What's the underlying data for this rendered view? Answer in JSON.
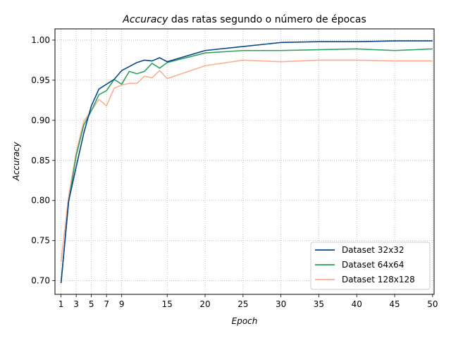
{
  "chart_data": {
    "type": "line",
    "title": "Accuracy das ratas segundo o número de épocas",
    "title_emphasis": "Accuracy",
    "title_rest": " das ratas segundo o número de épocas",
    "xlabel": "Epoch",
    "ylabel": "Accuracy",
    "xlim": [
      0.2,
      50.2
    ],
    "ylim": [
      0.683,
      1.014
    ],
    "x_ticks": [
      1,
      3,
      5,
      7,
      9,
      15,
      20,
      25,
      30,
      35,
      40,
      45,
      50
    ],
    "y_ticks": [
      0.7,
      0.75,
      0.8,
      0.85,
      0.9,
      0.95,
      1.0
    ],
    "y_tick_labels": [
      "0.70",
      "0.75",
      "0.80",
      "0.85",
      "0.90",
      "0.95",
      "1.00"
    ],
    "grid": true,
    "legend_position": "lower-right",
    "x": [
      1,
      2,
      3,
      4,
      5,
      6,
      7,
      8,
      9,
      10,
      11,
      12,
      13,
      14,
      15,
      20,
      25,
      30,
      35,
      40,
      45,
      50
    ],
    "series": [
      {
        "name": "Dataset 32x32",
        "color": "#08458c",
        "values": [
          0.697,
          0.799,
          0.842,
          0.884,
          0.918,
          0.939,
          0.945,
          0.951,
          0.962,
          0.967,
          0.972,
          0.975,
          0.974,
          0.978,
          0.973,
          0.987,
          0.992,
          0.997,
          0.998,
          0.998,
          0.999,
          0.999
        ]
      },
      {
        "name": "Dataset 64x64",
        "color": "#2ca25f",
        "values": [
          0.697,
          0.798,
          0.856,
          0.894,
          0.912,
          0.932,
          0.937,
          0.951,
          0.945,
          0.961,
          0.958,
          0.961,
          0.971,
          0.965,
          0.972,
          0.984,
          0.987,
          0.987,
          0.988,
          0.989,
          0.987,
          0.989
        ]
      },
      {
        "name": "Dataset 128x128",
        "color": "#fcae91",
        "values": [
          0.724,
          0.805,
          0.86,
          0.899,
          0.912,
          0.926,
          0.918,
          0.94,
          0.944,
          0.946,
          0.946,
          0.955,
          0.953,
          0.962,
          0.952,
          0.968,
          0.975,
          0.973,
          0.975,
          0.975,
          0.974,
          0.974
        ]
      }
    ]
  }
}
